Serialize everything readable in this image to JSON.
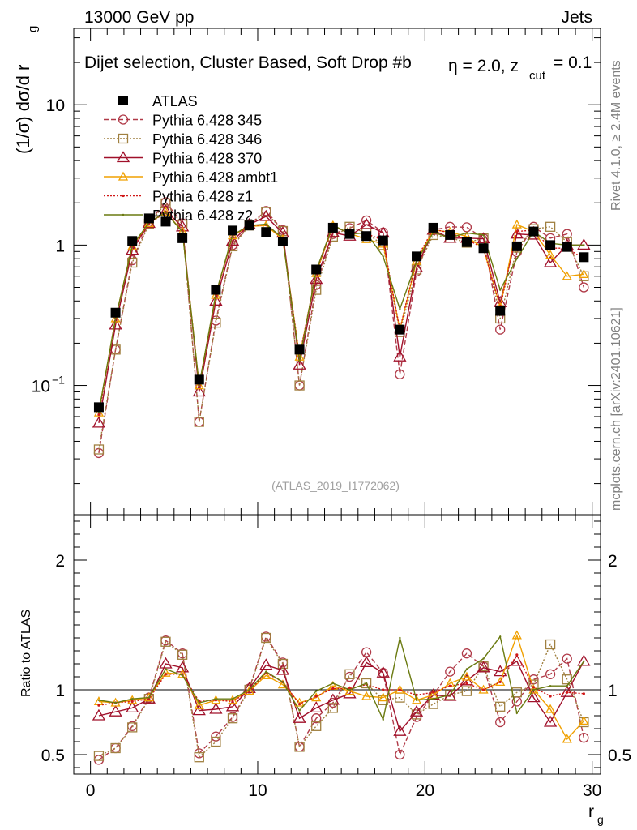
{
  "header": {
    "energy_label": "13000 GeV pp",
    "process_label": "Jets",
    "selection_title": "Dijet selection, Cluster Based, Soft Drop #b",
    "beta_text": "η = 2.0, z",
    "zcut_sub": "cut",
    "zcut_value": " = 0.1",
    "side_label_rivet": "Rivet 4.1.0, ≥ 2.4M events",
    "side_label_mcplots": "mcplots.cern.ch [arXiv:2401.10621]",
    "analysis_id": "(ATLAS_2019_I1772062)"
  },
  "chart_data": [
    {
      "panel": "main",
      "type": "scatter",
      "yscale": "log",
      "ylabel": "(1/σ) dσ/d r",
      "ylabel_sub": "g",
      "xlabel": "r",
      "xlabel_sub": "g",
      "xlim": [
        -1,
        30.5
      ],
      "ylim": [
        0.012,
        35
      ],
      "yticks": [
        {
          "v": 0.1,
          "label": "10",
          "exp": "−1"
        },
        {
          "v": 1,
          "label": "1"
        },
        {
          "v": 10,
          "label": "10"
        }
      ],
      "x": [
        0.5,
        1.5,
        2.5,
        3.5,
        4.5,
        5.5,
        6.5,
        7.5,
        8.5,
        9.5,
        10.5,
        11.5,
        12.5,
        13.5,
        14.5,
        15.5,
        16.5,
        17.5,
        18.5,
        19.5,
        20.5,
        21.5,
        22.5,
        23.5,
        24.5,
        25.5,
        26.5,
        27.5,
        28.5,
        29.5
      ],
      "legend": [
        "ATLAS",
        "Pythia 6.428 345",
        "Pythia 6.428 346",
        "Pythia 6.428 370",
        "Pythia 6.428 ambt1",
        "Pythia 6.428 z1",
        "Pythia 6.428 z2"
      ],
      "series": [
        {
          "name": "ATLAS",
          "color": "#000000",
          "style": "data",
          "values": [
            0.07,
            0.33,
            1.07,
            1.55,
            1.47,
            1.12,
            0.11,
            0.48,
            1.27,
            1.38,
            1.24,
            1.06,
            0.18,
            0.67,
            1.33,
            1.2,
            1.16,
            1.08,
            0.25,
            0.83,
            1.33,
            1.18,
            1.05,
            0.95,
            0.34,
            0.98,
            1.25,
            1.0,
            0.97,
            0.82
          ]
        },
        {
          "name": "Pythia 6.428 345",
          "color": "#b03a48",
          "style": "circle",
          "dash": "6,3",
          "values": [
            0.033,
            0.18,
            0.78,
            1.46,
            2.02,
            1.43,
            0.055,
            0.29,
            1.0,
            1.4,
            1.75,
            1.28,
            0.1,
            0.52,
            1.2,
            1.32,
            1.5,
            1.23,
            0.12,
            0.65,
            1.28,
            1.35,
            1.34,
            1.12,
            0.25,
            0.89,
            1.35,
            1.12,
            1.2,
            0.5
          ]
        },
        {
          "name": "Pythia 6.428 346",
          "color": "#a08040",
          "style": "square",
          "dash": "2,2",
          "values": [
            0.035,
            0.18,
            0.75,
            1.42,
            1.98,
            1.4,
            0.055,
            0.28,
            0.98,
            1.38,
            1.72,
            1.26,
            0.1,
            0.48,
            1.15,
            1.35,
            1.22,
            1.0,
            0.24,
            0.67,
            1.18,
            1.13,
            1.04,
            1.12,
            0.3,
            0.96,
            1.3,
            1.35,
            1.05,
            0.6
          ]
        },
        {
          "name": "Pythia 6.428 370",
          "color": "#a0102a",
          "style": "triangle_open",
          "dash": "",
          "values": [
            0.054,
            0.27,
            0.92,
            1.43,
            1.75,
            1.35,
            0.09,
            0.4,
            1.07,
            1.4,
            1.6,
            1.22,
            0.14,
            0.57,
            1.23,
            1.16,
            1.4,
            1.22,
            0.16,
            0.69,
            1.28,
            1.12,
            1.12,
            1.11,
            0.39,
            1.2,
            1.18,
            0.75,
            1.0,
            1.0
          ]
        },
        {
          "name": "Pythia 6.428 ambt1",
          "color": "#f0a000",
          "style": "triangle_filled",
          "dash": "",
          "values": [
            0.064,
            0.3,
            0.98,
            1.43,
            1.72,
            1.25,
            0.1,
            0.44,
            1.17,
            1.36,
            1.38,
            1.1,
            0.16,
            0.63,
            1.38,
            1.21,
            1.1,
            1.02,
            0.25,
            0.77,
            1.28,
            1.24,
            1.15,
            0.95,
            0.36,
            1.4,
            1.25,
            0.85,
            0.6,
            0.62
          ]
        },
        {
          "name": "Pythia 6.428 z1",
          "color": "#d01818",
          "style": "dot",
          "dash": "2,2",
          "values": [
            0.062,
            0.3,
            0.97,
            1.43,
            1.7,
            1.25,
            0.1,
            0.44,
            1.16,
            1.37,
            1.4,
            1.12,
            0.16,
            0.64,
            1.35,
            1.22,
            1.21,
            1.08,
            0.25,
            0.8,
            1.3,
            1.22,
            1.1,
            0.95,
            0.36,
            1.25,
            1.28,
            0.95,
            0.95,
            0.8
          ]
        },
        {
          "name": "Pythia 6.428 z2",
          "color": "#6a7a10",
          "style": "line",
          "dash": "",
          "values": [
            0.065,
            0.3,
            0.99,
            1.45,
            1.71,
            1.24,
            0.1,
            0.45,
            1.18,
            1.38,
            1.41,
            1.12,
            0.15,
            0.66,
            1.39,
            1.2,
            1.22,
            0.83,
            0.35,
            0.76,
            1.23,
            1.13,
            1.22,
            1.18,
            0.48,
            0.8,
            1.25,
            1.03,
            1.0,
            1.0
          ]
        }
      ]
    },
    {
      "panel": "ratio",
      "type": "line",
      "ylabel": "Ratio to ATLAS",
      "ylim": [
        0.35,
        2.35
      ],
      "yticks": [
        {
          "v": 0.5,
          "label": "0.5"
        },
        {
          "v": 1,
          "label": "1"
        },
        {
          "v": 2,
          "label": "2"
        }
      ],
      "xticks": [
        {
          "v": 0,
          "label": "0"
        },
        {
          "v": 10,
          "label": "10"
        },
        {
          "v": 20,
          "label": "20"
        },
        {
          "v": 30,
          "label": "30"
        }
      ],
      "series": [
        {
          "name": "Pythia 6.428 345",
          "values": [
            0.46,
            0.55,
            0.72,
            0.94,
            1.38,
            1.28,
            0.51,
            0.64,
            0.79,
            1.01,
            1.41,
            1.21,
            0.56,
            0.78,
            0.9,
            1.1,
            1.29,
            1.13,
            0.5,
            0.79,
            0.96,
            1.14,
            1.28,
            1.18,
            0.75,
            0.91,
            1.08,
            1.12,
            1.24,
            0.63
          ]
        },
        {
          "name": "Pythia 6.428 346",
          "values": [
            0.49,
            0.55,
            0.71,
            0.93,
            1.37,
            1.27,
            0.48,
            0.6,
            0.78,
            1.0,
            1.4,
            1.2,
            0.56,
            0.72,
            0.86,
            1.12,
            1.05,
            0.92,
            0.94,
            0.81,
            0.89,
            0.96,
            0.99,
            1.18,
            0.87,
            0.98,
            1.04,
            1.35,
            1.08,
            0.75
          ]
        },
        {
          "name": "Pythia 6.428 370",
          "values": [
            0.8,
            0.83,
            0.86,
            0.93,
            1.2,
            1.17,
            0.84,
            0.85,
            0.87,
            1.01,
            1.19,
            1.15,
            0.78,
            0.86,
            0.92,
            0.97,
            1.21,
            1.13,
            0.68,
            0.83,
            0.96,
            0.95,
            1.07,
            1.17,
            1.14,
            1.22,
            0.94,
            0.75,
            0.98,
            1.22
          ]
        },
        {
          "name": "Pythia 6.428 ambt1",
          "values": [
            0.91,
            0.9,
            0.92,
            0.94,
            1.13,
            1.12,
            0.88,
            0.92,
            0.92,
            0.99,
            1.11,
            1.04,
            0.9,
            0.94,
            1.03,
            0.99,
            0.95,
            0.94,
            1.0,
            0.92,
            0.96,
            1.05,
            1.1,
            1.0,
            1.06,
            1.42,
            1.0,
            0.85,
            0.62,
            0.76
          ]
        },
        {
          "name": "Pythia 6.428 z1",
          "values": [
            0.88,
            0.9,
            0.91,
            0.93,
            1.12,
            1.12,
            0.91,
            0.92,
            0.91,
            0.99,
            1.13,
            1.06,
            0.89,
            0.95,
            1.01,
            1.01,
            1.04,
            1.0,
            1.0,
            0.96,
            0.98,
            1.03,
            1.05,
            1.0,
            1.06,
            1.27,
            1.02,
            0.95,
            0.98,
            0.97
          ]
        },
        {
          "name": "Pythia 6.428 z2",
          "values": [
            0.92,
            0.9,
            0.93,
            0.94,
            1.16,
            1.11,
            0.9,
            0.93,
            0.93,
            1.0,
            1.14,
            1.06,
            0.84,
            0.99,
            1.05,
            1.0,
            1.05,
            0.77,
            1.4,
            0.92,
            0.93,
            0.96,
            1.16,
            1.24,
            1.41,
            0.82,
            1.0,
            1.03,
            1.03,
            1.22
          ]
        }
      ]
    }
  ]
}
